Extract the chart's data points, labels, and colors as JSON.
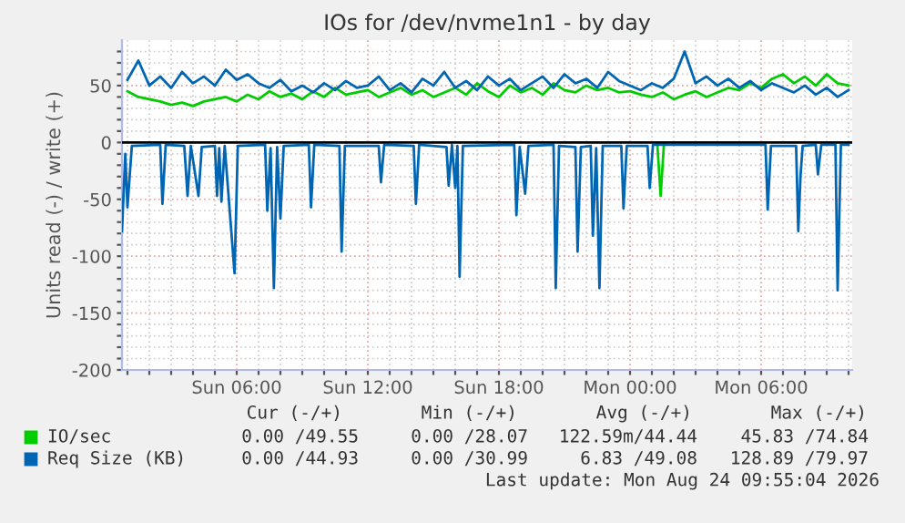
{
  "chart_data": {
    "type": "line",
    "title": "IOs for /dev/nvme1n1 - by day",
    "ylabel": "Units read (-) / write (+)",
    "x": [
      "2026-08-23T01:00",
      "2026-08-23T01:30",
      "2026-08-23T02:00",
      "2026-08-23T02:30",
      "2026-08-23T03:00",
      "2026-08-23T03:30",
      "2026-08-23T04:00",
      "2026-08-23T04:30",
      "2026-08-23T05:00",
      "2026-08-23T05:30",
      "2026-08-23T06:00",
      "2026-08-23T06:30",
      "2026-08-23T07:00",
      "2026-08-23T07:30",
      "2026-08-23T08:00",
      "2026-08-23T08:30",
      "2026-08-23T09:00",
      "2026-08-23T09:30",
      "2026-08-23T10:00",
      "2026-08-23T10:30",
      "2026-08-23T11:00",
      "2026-08-23T11:30",
      "2026-08-23T12:00",
      "2026-08-23T12:30",
      "2026-08-23T13:00",
      "2026-08-23T13:30",
      "2026-08-23T14:00",
      "2026-08-23T14:30",
      "2026-08-23T15:00",
      "2026-08-23T15:30",
      "2026-08-23T16:00",
      "2026-08-23T16:30",
      "2026-08-23T17:00",
      "2026-08-23T17:30",
      "2026-08-23T18:00",
      "2026-08-23T18:30",
      "2026-08-23T19:00",
      "2026-08-23T19:30",
      "2026-08-23T20:00",
      "2026-08-23T20:30",
      "2026-08-23T21:00",
      "2026-08-23T21:30",
      "2026-08-23T22:00",
      "2026-08-23T22:30",
      "2026-08-23T23:00",
      "2026-08-23T23:30",
      "2026-08-24T00:00",
      "2026-08-24T00:30",
      "2026-08-24T01:00",
      "2026-08-24T01:30",
      "2026-08-24T02:00",
      "2026-08-24T02:30",
      "2026-08-24T03:00",
      "2026-08-24T03:30",
      "2026-08-24T04:00",
      "2026-08-24T04:30",
      "2026-08-24T05:00",
      "2026-08-24T05:30",
      "2026-08-24T06:00",
      "2026-08-24T06:30",
      "2026-08-24T07:00",
      "2026-08-24T07:30",
      "2026-08-24T08:00",
      "2026-08-24T08:30",
      "2026-08-24T09:00",
      "2026-08-24T09:30",
      "2026-08-24T10:00"
    ],
    "series": [
      {
        "name": "IO/sec",
        "color": "#00cc00",
        "values": [
          45,
          40,
          38,
          36,
          33,
          35,
          32,
          36,
          38,
          40,
          36,
          42,
          38,
          45,
          40,
          43,
          38,
          45,
          40,
          48,
          42,
          44,
          46,
          40,
          44,
          48,
          42,
          46,
          40,
          44,
          48,
          42,
          52,
          45,
          40,
          50,
          44,
          48,
          42,
          52,
          46,
          44,
          50,
          46,
          48,
          44,
          45,
          42,
          40,
          44,
          38,
          42,
          45,
          40,
          44,
          48,
          46,
          52,
          48,
          56,
          60,
          52,
          58,
          50,
          60,
          52,
          50
        ]
      },
      {
        "name": "Req Size (KB)",
        "color": "#0066b3",
        "values": [
          55,
          72,
          50,
          58,
          48,
          62,
          52,
          58,
          50,
          64,
          55,
          60,
          52,
          48,
          55,
          45,
          50,
          44,
          52,
          46,
          54,
          48,
          50,
          58,
          46,
          52,
          44,
          56,
          50,
          62,
          48,
          54,
          46,
          58,
          50,
          56,
          46,
          52,
          58,
          48,
          60,
          52,
          56,
          48,
          62,
          54,
          50,
          46,
          52,
          48,
          56,
          80,
          52,
          58,
          50,
          56,
          48,
          54,
          46,
          52,
          48,
          44,
          50,
          42,
          48,
          40,
          46
        ]
      },
      {
        "color": "#00cc00",
        "x": [
          "2026-08-24T01:15",
          "2026-08-24T01:24",
          "2026-08-24T01:33"
        ],
        "values": [
          -2,
          -47,
          -2
        ]
      },
      {
        "color": "#0066b3",
        "x": [
          "2026-08-23T00:45",
          "2026-08-23T00:54",
          "2026-08-23T01:00",
          "2026-08-23T01:12",
          "2026-08-23T02:30",
          "2026-08-23T02:36",
          "2026-08-23T02:45",
          "2026-08-23T03:36",
          "2026-08-23T03:45",
          "2026-08-23T03:54",
          "2026-08-23T04:15",
          "2026-08-23T04:24",
          "2026-08-23T05:00",
          "2026-08-23T05:06",
          "2026-08-23T05:12",
          "2026-08-23T05:18",
          "2026-08-23T05:27",
          "2026-08-23T05:54",
          "2026-08-23T06:03",
          "2026-08-23T07:18",
          "2026-08-23T07:24",
          "2026-08-23T07:33",
          "2026-08-23T07:42",
          "2026-08-23T07:51",
          "2026-08-23T08:00",
          "2026-08-23T08:09",
          "2026-08-23T09:18",
          "2026-08-23T09:24",
          "2026-08-23T09:33",
          "2026-08-23T10:42",
          "2026-08-23T10:48",
          "2026-08-23T10:57",
          "2026-08-23T12:30",
          "2026-08-23T12:36",
          "2026-08-23T12:45",
          "2026-08-23T14:06",
          "2026-08-23T14:12",
          "2026-08-23T14:21",
          "2026-08-23T15:36",
          "2026-08-23T15:42",
          "2026-08-23T15:51",
          "2026-08-23T16:00",
          "2026-08-23T16:06",
          "2026-08-23T16:12",
          "2026-08-23T16:21",
          "2026-08-23T18:42",
          "2026-08-23T18:48",
          "2026-08-23T18:57",
          "2026-08-23T19:12",
          "2026-08-23T19:21",
          "2026-08-23T20:30",
          "2026-08-23T20:36",
          "2026-08-23T20:45",
          "2026-08-23T21:30",
          "2026-08-23T21:36",
          "2026-08-23T21:45",
          "2026-08-23T22:12",
          "2026-08-23T22:18",
          "2026-08-23T22:27",
          "2026-08-23T22:36",
          "2026-08-23T22:45",
          "2026-08-23T23:36",
          "2026-08-23T23:42",
          "2026-08-23T23:51",
          "2026-08-24T00:48",
          "2026-08-24T00:54",
          "2026-08-24T01:03",
          "2026-08-24T06:12",
          "2026-08-24T06:18",
          "2026-08-24T06:27",
          "2026-08-24T07:36",
          "2026-08-24T07:42",
          "2026-08-24T07:48",
          "2026-08-24T07:54",
          "2026-08-24T08:30",
          "2026-08-24T08:36",
          "2026-08-24T08:45",
          "2026-08-24T09:24",
          "2026-08-24T09:30",
          "2026-08-24T09:39",
          "2026-08-24T10:00"
        ],
        "values": [
          -78,
          -10,
          -57,
          -3,
          -2,
          -54,
          -2,
          -3,
          -47,
          -3,
          -47,
          -4,
          -3,
          -47,
          -5,
          -52,
          -3,
          -115,
          -3,
          -2,
          -60,
          -5,
          -128,
          -4,
          -67,
          -3,
          -2,
          -57,
          -2,
          -3,
          -96,
          -3,
          -3,
          -35,
          -2,
          -3,
          -54,
          -2,
          -4,
          -38,
          -2,
          -40,
          -3,
          -118,
          -3,
          -2,
          -64,
          -4,
          -45,
          -3,
          -2,
          -128,
          -3,
          -4,
          -96,
          -4,
          -3,
          -82,
          -5,
          -128,
          -3,
          -3,
          -58,
          -3,
          -3,
          -40,
          -2,
          -2,
          -59,
          -3,
          -3,
          -78,
          -30,
          -3,
          -2,
          -28,
          -2,
          -2,
          -130,
          -2,
          -2
        ]
      }
    ],
    "xlim": [
      "2026-08-23T00:45",
      "2026-08-24T10:10"
    ],
    "xticks": [
      {
        "value": "2026-08-23T01:00",
        "label": null
      },
      {
        "value": "2026-08-23T02:00",
        "label": null
      },
      {
        "value": "2026-08-23T03:00",
        "label": null
      },
      {
        "value": "2026-08-23T04:00",
        "label": null
      },
      {
        "value": "2026-08-23T05:00",
        "label": null
      },
      {
        "value": "2026-08-23T06:00",
        "label": "Sun 06:00"
      },
      {
        "value": "2026-08-23T07:00",
        "label": null
      },
      {
        "value": "2026-08-23T08:00",
        "label": null
      },
      {
        "value": "2026-08-23T09:00",
        "label": null
      },
      {
        "value": "2026-08-23T10:00",
        "label": null
      },
      {
        "value": "2026-08-23T11:00",
        "label": null
      },
      {
        "value": "2026-08-23T12:00",
        "label": "Sun 12:00"
      },
      {
        "value": "2026-08-23T13:00",
        "label": null
      },
      {
        "value": "2026-08-23T14:00",
        "label": null
      },
      {
        "value": "2026-08-23T15:00",
        "label": null
      },
      {
        "value": "2026-08-23T16:00",
        "label": null
      },
      {
        "value": "2026-08-23T17:00",
        "label": null
      },
      {
        "value": "2026-08-23T18:00",
        "label": "Sun 18:00"
      },
      {
        "value": "2026-08-23T19:00",
        "label": null
      },
      {
        "value": "2026-08-23T20:00",
        "label": null
      },
      {
        "value": "2026-08-23T21:00",
        "label": null
      },
      {
        "value": "2026-08-23T22:00",
        "label": null
      },
      {
        "value": "2026-08-23T23:00",
        "label": null
      },
      {
        "value": "2026-08-24T00:00",
        "label": "Mon 00:00"
      },
      {
        "value": "2026-08-24T01:00",
        "label": null
      },
      {
        "value": "2026-08-24T02:00",
        "label": null
      },
      {
        "value": "2026-08-24T03:00",
        "label": null
      },
      {
        "value": "2026-08-24T04:00",
        "label": null
      },
      {
        "value": "2026-08-24T05:00",
        "label": null
      },
      {
        "value": "2026-08-24T06:00",
        "label": "Mon 06:00"
      },
      {
        "value": "2026-08-24T07:00",
        "label": null
      },
      {
        "value": "2026-08-24T08:00",
        "label": null
      },
      {
        "value": "2026-08-24T09:00",
        "label": null
      },
      {
        "value": "2026-08-24T10:00",
        "label": null
      }
    ],
    "ylim": [
      -200,
      90
    ],
    "yticks": [
      -200,
      {
        "value": -190,
        "label": null
      },
      {
        "value": -180,
        "label": null
      },
      {
        "value": -170,
        "label": null
      },
      {
        "value": -160,
        "label": null
      },
      -150,
      {
        "value": -140,
        "label": null
      },
      {
        "value": -130,
        "label": null
      },
      {
        "value": -120,
        "label": null
      },
      {
        "value": -110,
        "label": null
      },
      -100,
      {
        "value": -90,
        "label": null
      },
      {
        "value": -80,
        "label": null
      },
      {
        "value": -70,
        "label": null
      },
      {
        "value": -60,
        "label": null
      },
      -50,
      {
        "value": -40,
        "label": null
      },
      {
        "value": -30,
        "label": null
      },
      {
        "value": -20,
        "label": null
      },
      {
        "value": -10,
        "label": null
      },
      0,
      {
        "value": 10,
        "label": null
      },
      {
        "value": 20,
        "label": null
      },
      {
        "value": 30,
        "label": null
      },
      {
        "value": 40,
        "label": null
      },
      50,
      {
        "value": 60,
        "label": null
      },
      {
        "value": 70,
        "label": null
      },
      {
        "value": 80,
        "label": null
      }
    ],
    "grid": true,
    "legend": "bottom",
    "line_style": "solid",
    "marker": "none",
    "ref_lines": [
      {
        "axis": "y",
        "value": 0,
        "color": "#000000"
      }
    ],
    "annotations": [
      "Cur (-/+)",
      "Min (-/+)",
      "Avg (-/+)",
      "Max (-/+)",
      "0.00 /49.55",
      "0.00 /28.07",
      "122.59m/44.44",
      "45.83 /74.84",
      "0.00 /44.93",
      "0.00 /30.99",
      "6.83 /49.08",
      "128.89 /79.97",
      "Last update: Mon Aug 24 09:55:04 2026"
    ]
  }
}
